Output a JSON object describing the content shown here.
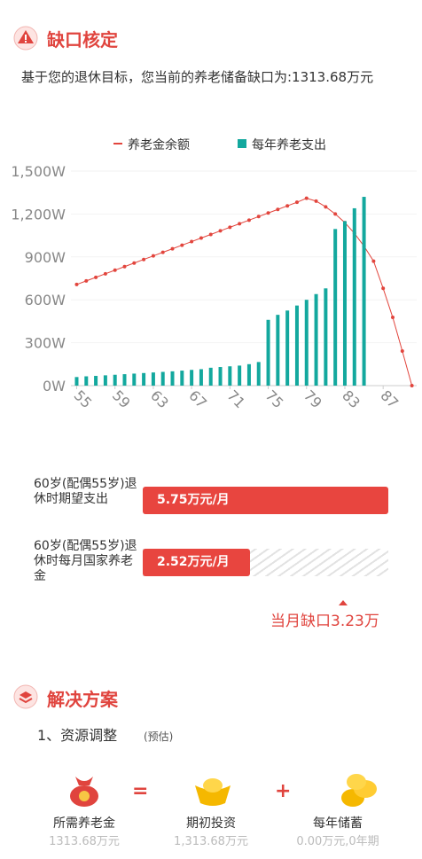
{
  "gap": {
    "title": "缺口核定",
    "text": "基于您的退休目标，您当前的养老储备缺口为:1313.68万元"
  },
  "chart_data": {
    "type": "bar-line",
    "x": [
      55,
      56,
      57,
      58,
      59,
      60,
      61,
      62,
      63,
      64,
      65,
      66,
      67,
      68,
      69,
      70,
      71,
      72,
      73,
      74,
      75,
      76,
      77,
      78,
      79,
      80,
      81,
      82,
      83,
      84,
      85,
      86,
      87,
      88,
      89,
      90
    ],
    "xlim": [
      54.4,
      90.5
    ],
    "xticks": [
      55,
      59,
      63,
      67,
      71,
      75,
      79,
      83,
      87
    ],
    "ylim": [
      0,
      1500
    ],
    "yticks": [
      {
        "value": 0,
        "label": "0W"
      },
      {
        "value": 300,
        "label": "300W"
      },
      {
        "value": 600,
        "label": "600W"
      },
      {
        "value": 900,
        "label": "900W"
      },
      {
        "value": 1200,
        "label": "1,200W"
      },
      {
        "value": 1500,
        "label": "1,500W"
      }
    ],
    "grid": true,
    "legend": "top",
    "series": [
      {
        "name": "养老金余额",
        "type": "line",
        "color": "#e2453d",
        "values": [
          707,
          732,
          757,
          782,
          807,
          832,
          857,
          882,
          907,
          932,
          957,
          982,
          1007,
          1032,
          1057,
          1082,
          1107,
          1132,
          1157,
          1182,
          1207,
          1232,
          1257,
          1282,
          1310,
          1290,
          1250,
          1200,
          1140,
          1065,
          975,
          870,
          680,
          477,
          242,
          0
        ]
      },
      {
        "name": "每年养老支出",
        "type": "bar",
        "color": "#13a89e",
        "values": [
          60,
          65,
          68,
          72,
          76,
          80,
          84,
          88,
          92,
          96,
          100,
          105,
          110,
          115,
          125,
          130,
          135,
          140,
          150,
          165,
          460,
          495,
          525,
          560,
          600,
          640,
          680,
          1095,
          1150,
          1240,
          1320,
          null,
          null,
          null,
          null,
          null
        ]
      }
    ]
  },
  "compare": {
    "max": 5.75,
    "rows": [
      {
        "label": "60岁(配偶55岁)退休时期望支出",
        "value": 5.75,
        "value_label": "5.75万元/月"
      },
      {
        "label": "60岁(配偶55岁)退休时每月国家养老金",
        "value": 2.52,
        "value_label": "2.52万元/月"
      }
    ],
    "gap_label": "当月缺口3.23万"
  },
  "solution": {
    "title": "解决方案",
    "step": "1、资源调整",
    "note": "(预估)",
    "items": [
      {
        "label": "所需养老金",
        "value": "1313.68万元"
      },
      {
        "label": "期初投资",
        "value": "1,313.68万元"
      },
      {
        "label": "每年储蓄",
        "value": "0.00万元,0年期"
      }
    ],
    "ops": [
      "=",
      "+"
    ]
  }
}
